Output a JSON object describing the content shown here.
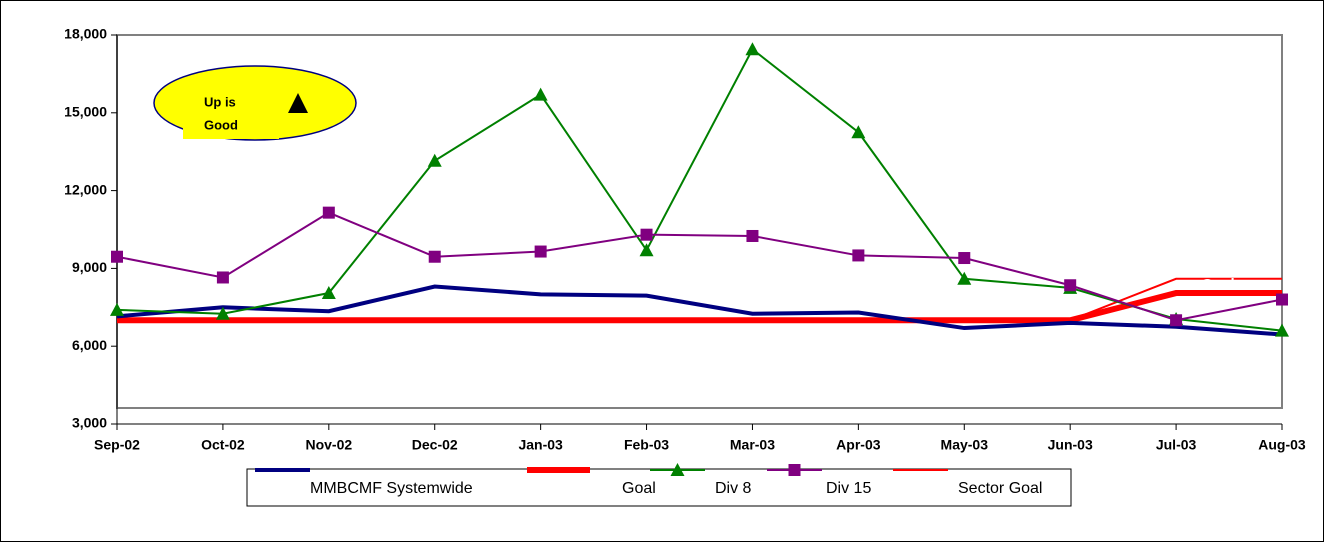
{
  "chart_data": {
    "type": "line",
    "categories": [
      "Sep-02",
      "Oct-02",
      "Nov-02",
      "Dec-02",
      "Jan-03",
      "Feb-03",
      "Mar-03",
      "Apr-03",
      "May-03",
      "Jun-03",
      "Jul-03",
      "Aug-03"
    ],
    "series": [
      {
        "name": "MMBCMF Systemwide",
        "color": "#000080",
        "values": [
          7150,
          7500,
          7350,
          8300,
          8000,
          7950,
          7250,
          7300,
          6700,
          6900,
          6750,
          6450
        ]
      },
      {
        "name": "Goal",
        "color": "#ff0000",
        "values": [
          7000,
          7000,
          7000,
          7000,
          7000,
          7000,
          7000,
          7000,
          7000,
          7000,
          8050,
          8050
        ]
      },
      {
        "name": "Div 8",
        "color": "#008000",
        "marker": "triangle",
        "values": [
          7400,
          7250,
          8050,
          13150,
          15700,
          9700,
          17450,
          14250,
          8600,
          8250,
          7050,
          6600
        ]
      },
      {
        "name": "Div 15",
        "color": "#800080",
        "marker": "square",
        "values": [
          9450,
          8650,
          11150,
          9450,
          9650,
          10300,
          10250,
          9500,
          9400,
          8350,
          7000,
          7800
        ]
      },
      {
        "name": "Sector Goal",
        "color": "#ff0000",
        "values": [
          7000,
          7000,
          7000,
          7000,
          7000,
          7000,
          7000,
          7000,
          7000,
          7000,
          8600,
          8600
        ]
      }
    ],
    "ylim": [
      3000,
      18000
    ],
    "yticks": [
      {
        "value": 3000,
        "label": "3,000"
      },
      {
        "value": 6000,
        "label": "6,000"
      },
      {
        "value": 9000,
        "label": "9,000"
      },
      {
        "value": 12000,
        "label": "12,000"
      },
      {
        "value": 15000,
        "label": "15,000"
      },
      {
        "value": 18000,
        "label": "18,000"
      }
    ],
    "callout": [
      "Up is",
      "Good"
    ],
    "goal_label": "Goal"
  }
}
